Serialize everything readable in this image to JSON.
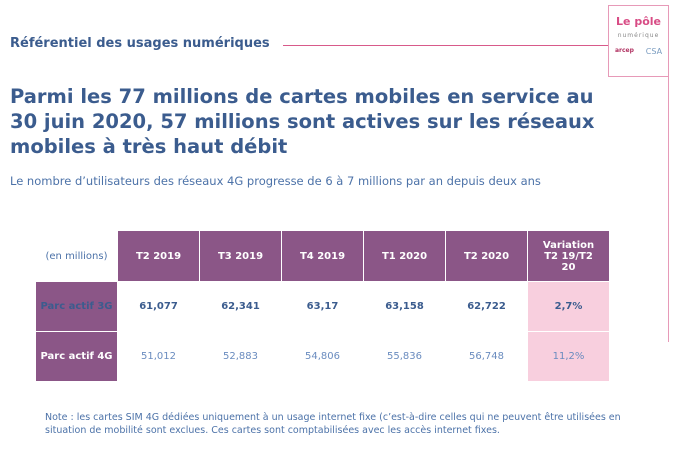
{
  "section_title": "Référentiel des usages numériques",
  "logo": {
    "line1": "Le pôle",
    "line2": "numérique",
    "mark1": "arcep",
    "mark2": "CSA"
  },
  "headline": "Parmi les 77 millions de cartes mobiles en service au 30 juin 2020, 57 millions sont actives sur les réseaux mobiles à très haut débit",
  "subtitle": "Le nombre d’utilisateurs des réseaux 4G progresse de 6 à 7 millions par an depuis deux ans",
  "table": {
    "unit": "(en millions)",
    "headers": [
      "T2 2019",
      "T3 2019",
      "T4 2019",
      "T1 2020",
      "T2 2020",
      "Variation T2 19/T2 20"
    ],
    "rows": [
      {
        "label": "Parc actif 3G",
        "values": [
          "61,077",
          "62,341",
          "63,17",
          "63,158",
          "62,722"
        ],
        "variation": "2,7%"
      },
      {
        "label": "Parc actif 4G",
        "values": [
          "51,012",
          "52,883",
          "54,806",
          "55,836",
          "56,748"
        ],
        "variation": "11,2%"
      }
    ]
  },
  "note": "Note : les cartes SIM 4G dédiées uniquement à un usage internet fixe (c’est-à-dire celles qui ne peuvent être utilisées en situation de mobilité sont exclues. Ces cartes sont comptabilisées avec les accès internet fixes.",
  "colors": {
    "header": "#8b5687",
    "variation": "#f8cfde",
    "accent": "#d84c85",
    "text": "#3b5c8e"
  }
}
